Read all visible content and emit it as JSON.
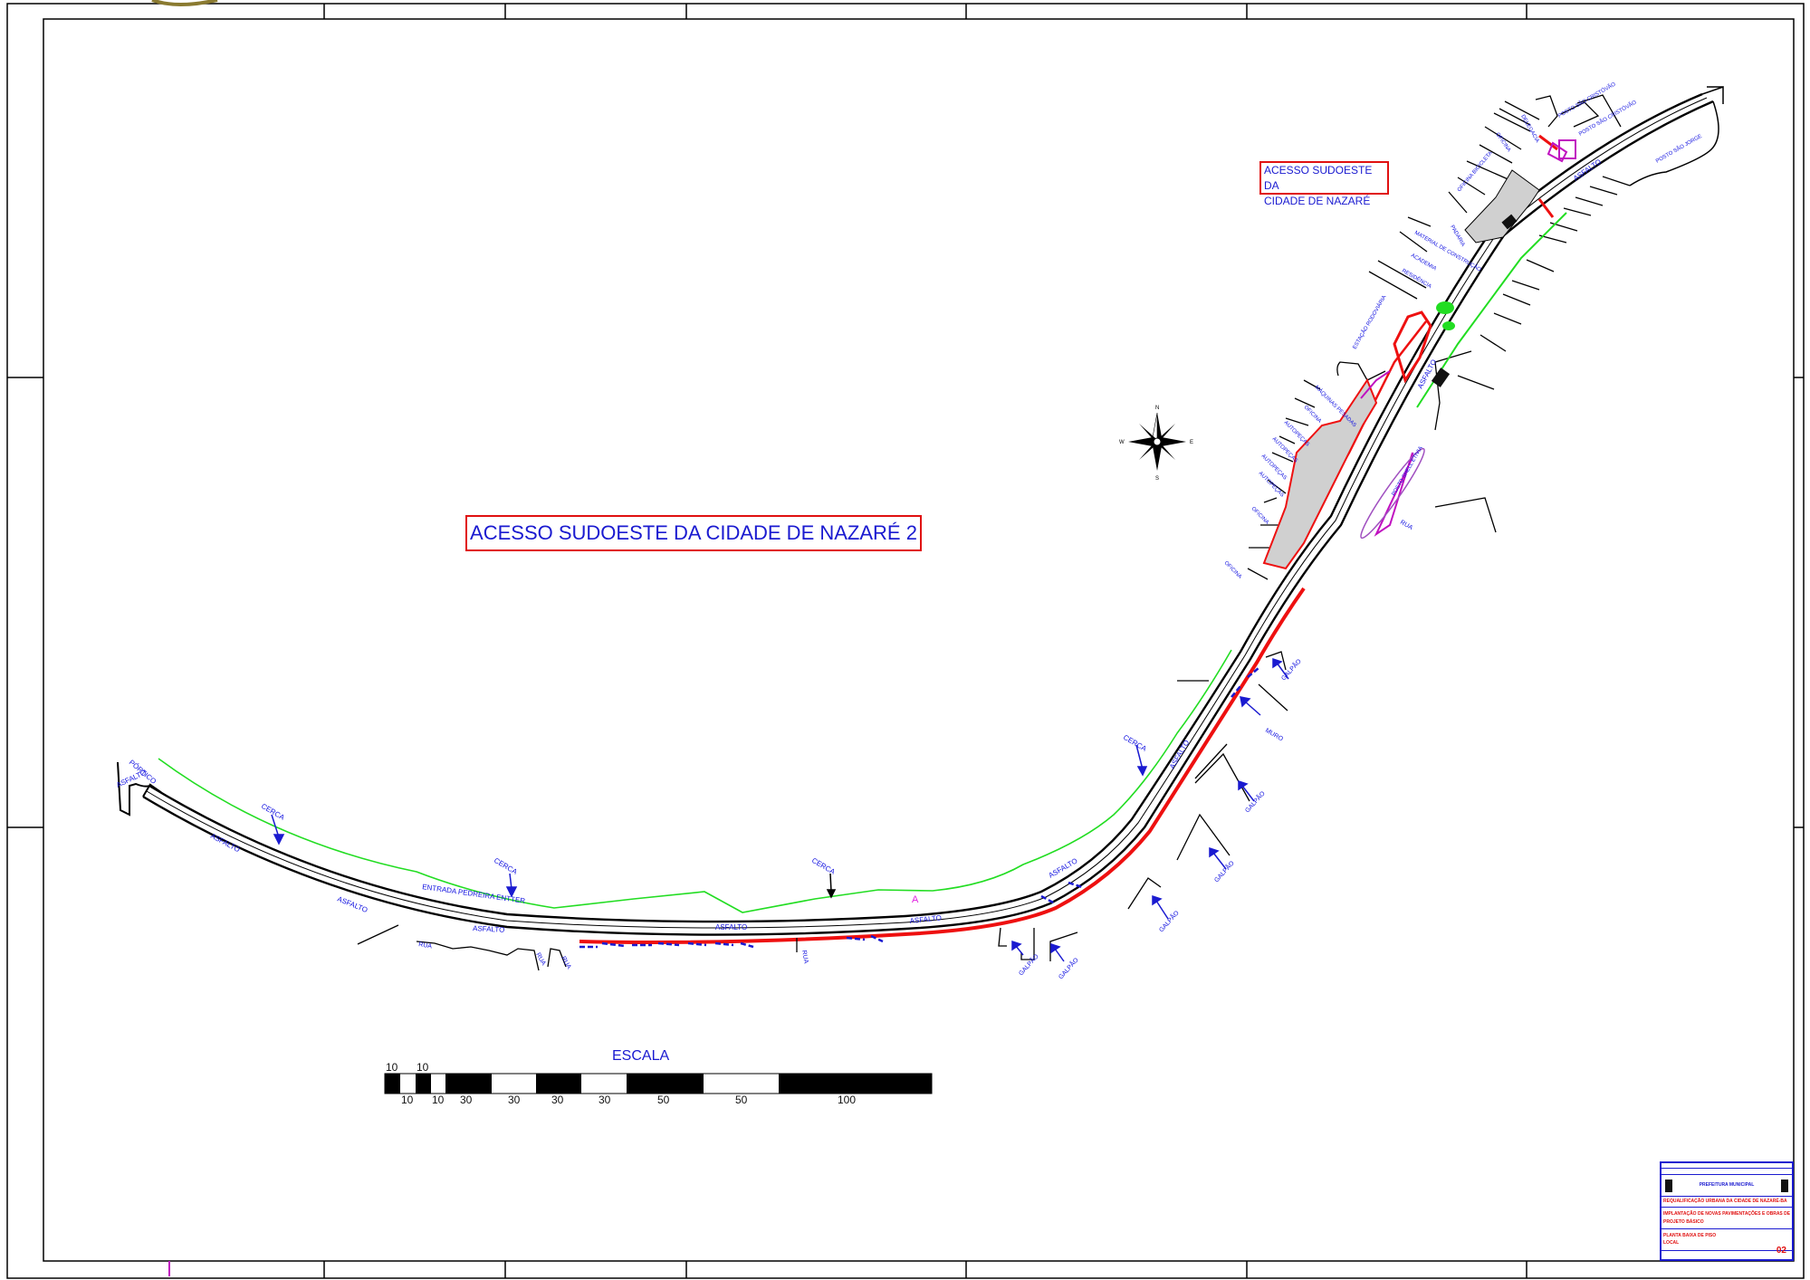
{
  "drawing": {
    "main_title": "ACESSO SUDOESTE DA CIDADE DE NAZARÉ 2",
    "sub_title_line1": "ACESSO SUDOESTE DA",
    "sub_title_line2": "CIDADE DE NAZARÉ",
    "point_marker": "A",
    "sheet_number": "02"
  },
  "compass": {
    "north": "N",
    "south": "S",
    "east": "E",
    "west": "W"
  },
  "scale_bar": {
    "label": "ESCALA",
    "top_numbers": [
      "10",
      "10"
    ],
    "bottom_numbers": [
      "10",
      "10",
      "30",
      "30",
      "30",
      "30",
      "50",
      "50",
      "100"
    ]
  },
  "labels": {
    "asfalto": "ASFALTO",
    "cerca": "CERCA",
    "rua": "RUA",
    "galpao": "GALPÃO",
    "muro": "MURO",
    "portico": "PÓRTICO",
    "entrada": "ENTRADA PEDREIRA ENTTER",
    "oficina": "OFICINA",
    "autopecas": "AUTOPEÇAS",
    "maquinas": "MÁQUINAS PESADAS",
    "estacao": "ESTAÇÃO RODOVIÁRIA",
    "material": "MATERIAL DE CONSTRUÇÃO",
    "padaria": "PADARIA",
    "residencia": "RESIDÊNCIA",
    "academia": "ACADEMIA",
    "oficina_bicicleta": "OFICINA BICICLETA",
    "delegacia": "DELEGACIA",
    "posto_sao_cristovao": "POSTO SÃO CRISTÓVÃO",
    "posto_sao_jorge": "POSTO SÃO JORGE",
    "posto_shell": "POSTO SHELL ETÍVIA"
  },
  "title_block": {
    "rows": [
      "PREFEITURA MUNICIPAL",
      "REQUALIFICAÇÃO URBANA DA CIDADE DE NAZARÉ-BA",
      "IMPLANTAÇÃO DE NOVAS PAVIMENTAÇÕES E OBRAS DE ACESSO",
      "PROJETO BÁSICO",
      "PLANTA BAIXA DE PISO",
      "LOCAL"
    ]
  }
}
